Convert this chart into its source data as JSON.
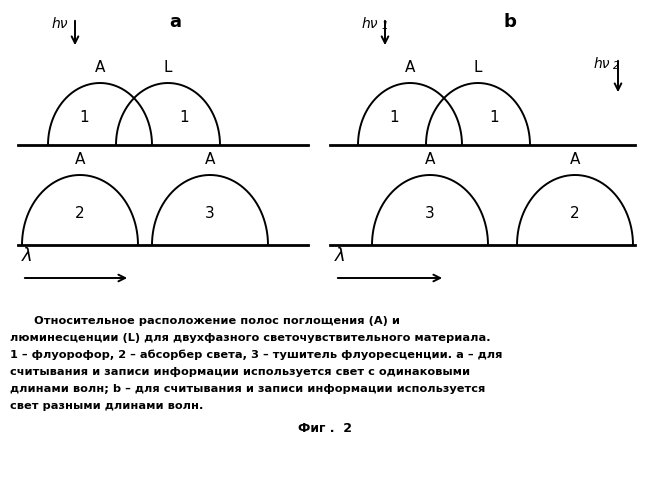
{
  "fig_width": 6.51,
  "fig_height": 4.99,
  "dpi": 100,
  "bg_color": "#ffffff",
  "text_color": "#000000",
  "caption_line1": "      Относительное расположение полос поглощения (А) и",
  "caption_line2": "люминесценции (L) для двухфазного светочувствительного материала.",
  "caption_line3": "1 – флуорофор, 2 – абсорбер света, 3 – тушитель флуоресценции. а – для",
  "caption_line4": "считывания и записи информации используется свет с одинаковыми",
  "caption_line5": "длинами волн; b – для считывания и записи информации используется",
  "caption_line6": "свет разными длинами волн.",
  "caption_fig": "Фиг .  2"
}
